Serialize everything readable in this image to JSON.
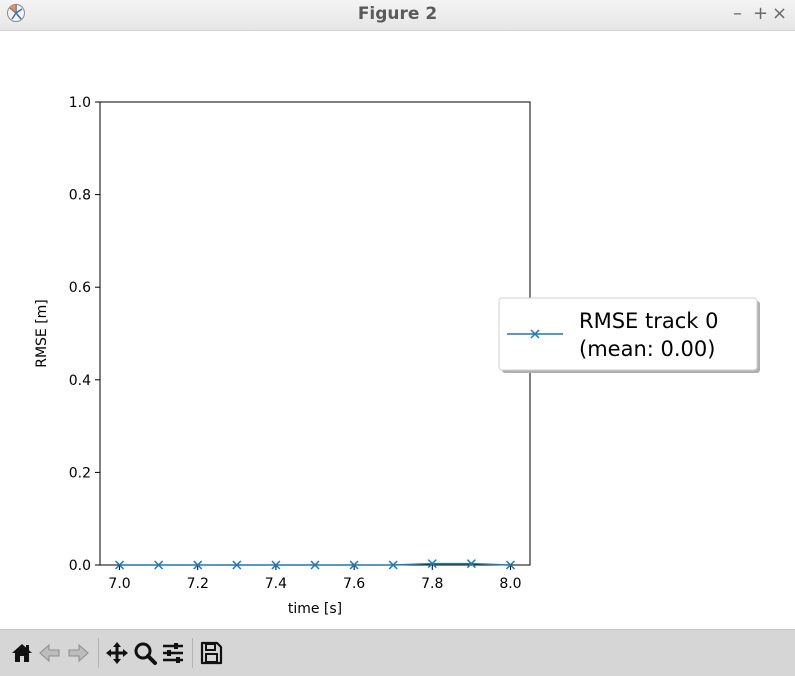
{
  "window": {
    "title": "Figure 2",
    "controls": {
      "minimize": "–",
      "maximize": "+",
      "close": "×"
    }
  },
  "toolbar": {
    "icons": [
      "home-icon",
      "back-icon",
      "forward-icon",
      "pan-icon",
      "zoom-icon",
      "configure-subplots-icon",
      "save-icon"
    ]
  },
  "chart_data": {
    "type": "line",
    "title": "",
    "xlabel": "time [s]",
    "ylabel": "RMSE [m]",
    "xlim": [
      6.95,
      8.05
    ],
    "ylim": [
      0.0,
      1.0
    ],
    "xticks": [
      7.0,
      7.2,
      7.4,
      7.6,
      7.8,
      8.0
    ],
    "xtick_labels": [
      "7.0",
      "7.2",
      "7.4",
      "7.6",
      "7.8",
      "8.0"
    ],
    "yticks": [
      0.0,
      0.2,
      0.4,
      0.6,
      0.8,
      1.0
    ],
    "ytick_labels": [
      "0.0",
      "0.2",
      "0.4",
      "0.6",
      "0.8",
      "1.0"
    ],
    "grid": false,
    "legend_position": "outside right, centered",
    "marker": "x",
    "series": [
      {
        "legend_lines": [
          "RMSE track 0",
          "(mean: 0.00)"
        ],
        "color": "#1f77b4",
        "x": [
          7.0,
          7.1,
          7.2,
          7.3,
          7.4,
          7.5,
          7.6,
          7.7,
          7.8,
          7.9,
          8.0
        ],
        "y": [
          0.0,
          0.0,
          0.0,
          0.0,
          0.0,
          0.0,
          0.0,
          0.0,
          0.003,
          0.003,
          0.0
        ]
      }
    ]
  }
}
